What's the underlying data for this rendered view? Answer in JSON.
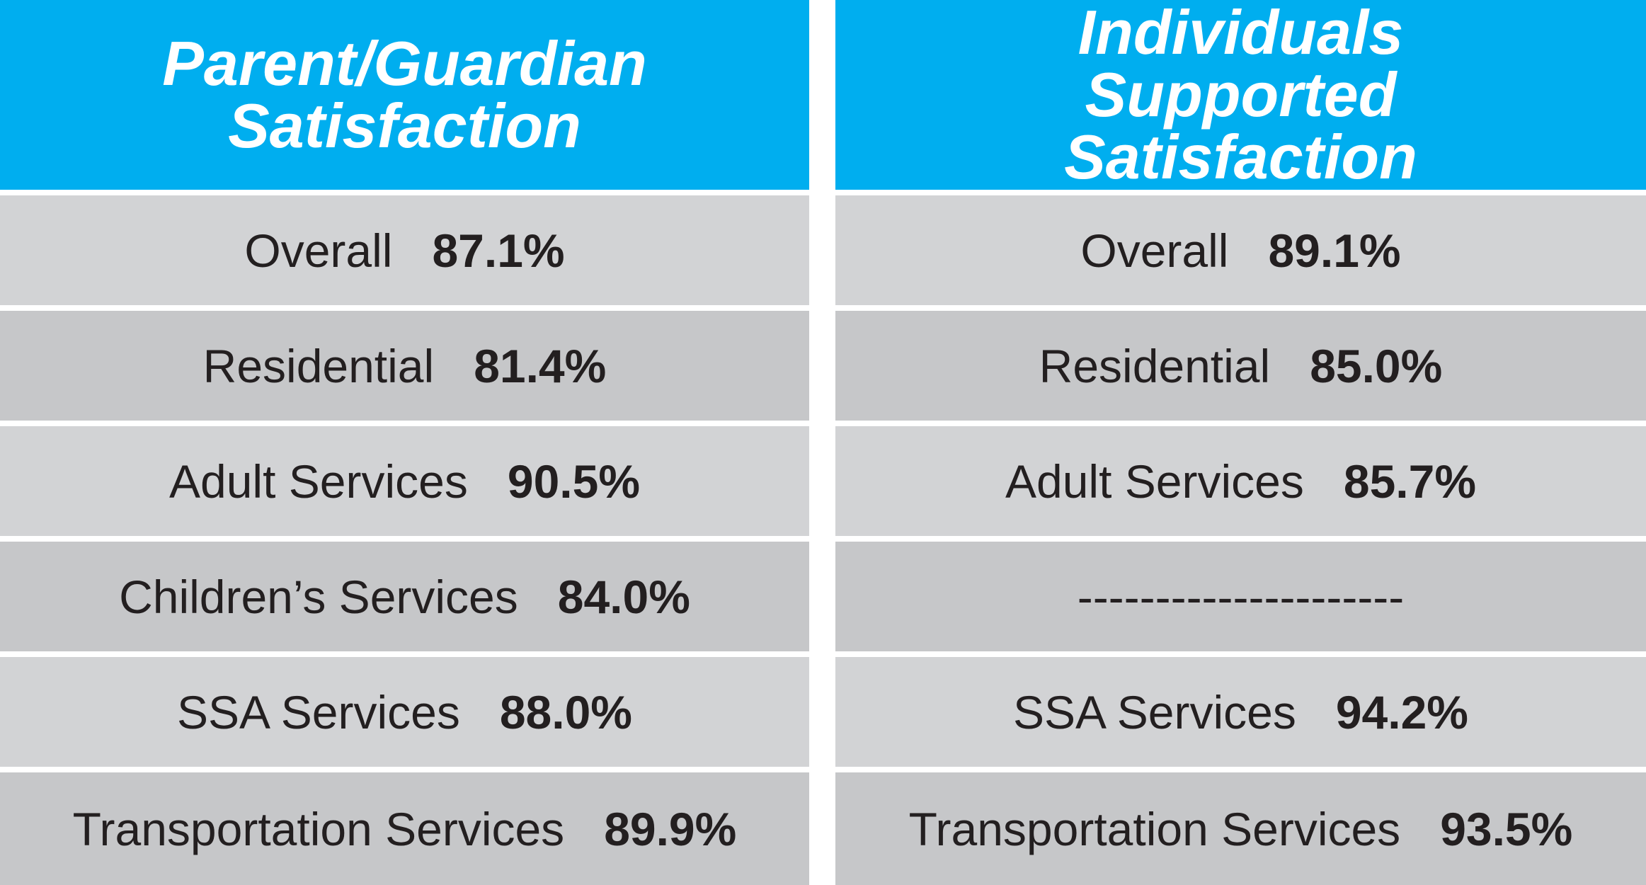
{
  "columns": [
    {
      "title": "Parent/Guardian Satisfaction",
      "rows": [
        {
          "label": "Overall",
          "value": "87.1%"
        },
        {
          "label": "Residential",
          "value": "81.4%"
        },
        {
          "label": "Adult Services",
          "value": "90.5%"
        },
        {
          "label": "Children’s Services",
          "value": "84.0%"
        },
        {
          "label": "SSA Services",
          "value": "88.0%"
        },
        {
          "label": "Transportation Services",
          "value": "89.9%"
        }
      ]
    },
    {
      "title": "Individuals Supported Satisfaction",
      "rows": [
        {
          "label": "Overall",
          "value": "89.1%"
        },
        {
          "label": "Residential",
          "value": "85.0%"
        },
        {
          "label": "Adult Services",
          "value": "85.7%"
        },
        {
          "label": "---------------------"
        },
        {
          "label": "SSA Services",
          "value": "94.2%"
        },
        {
          "label": "Transportation Services",
          "value": "93.5%"
        }
      ]
    }
  ]
}
